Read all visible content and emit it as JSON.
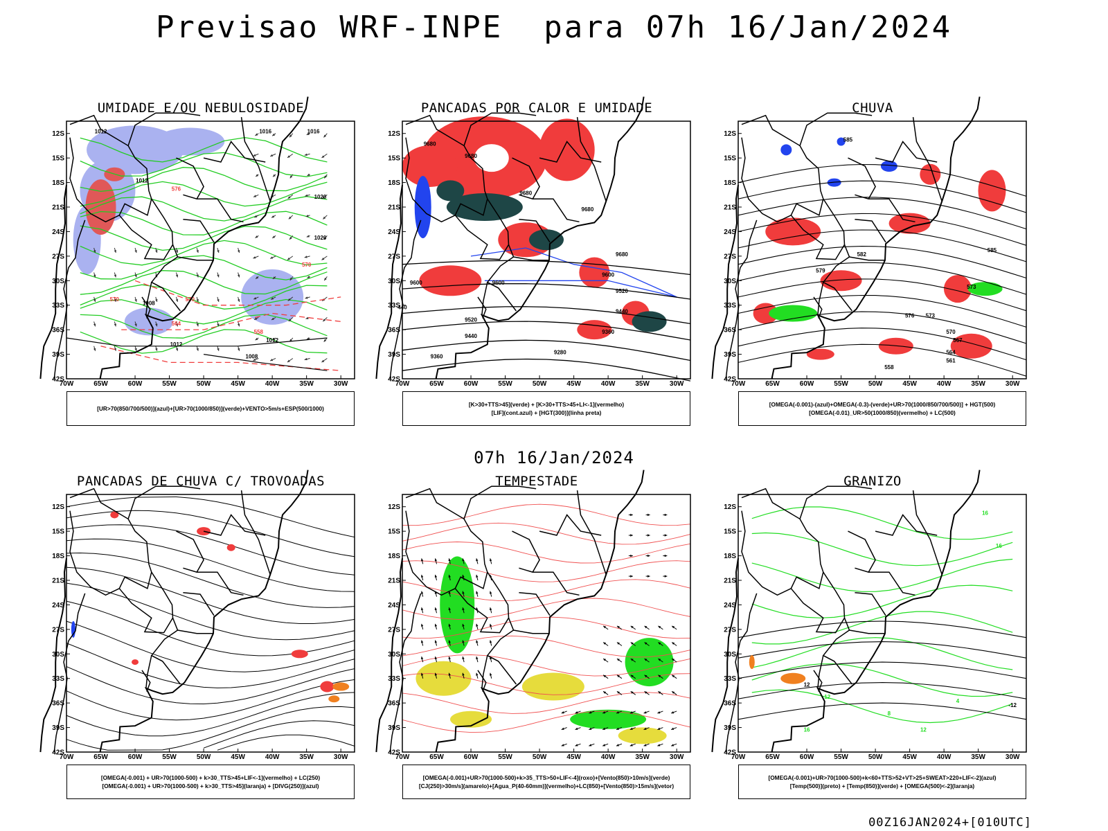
{
  "main_title": "Previsao WRF-INPE  para 07h 16/Jan/2024",
  "mid_title": "07h 16/Jan/2024",
  "footer": "00Z16JAN2024+[010UTC]",
  "lat_labels": [
    "12S",
    "15S",
    "18S",
    "21S",
    "24S",
    "27S",
    "30S",
    "33S",
    "36S",
    "39S",
    "42S"
  ],
  "lon_labels": [
    "70W",
    "65W",
    "60W",
    "55W",
    "50W",
    "45W",
    "40W",
    "35W",
    "30W"
  ],
  "colors": {
    "humidity_blue": "#aab2f0",
    "humidity_green": "#22cc22",
    "red": "#f03c3c",
    "dark_teal": "#1e4646",
    "blue": "#2244ee",
    "green": "#22dd22",
    "orange": "#f08020",
    "yellow": "#e6dc3c",
    "pink_line": "#f05050"
  },
  "panels": [
    {
      "title": "UMIDADE E/OU NEBULOSIDADE",
      "legend": [
        "[UR>70(850/700/500)](azul)+[UR>70(1000/850)](verde)+VENTO>5m/s+ESP(500/1000)"
      ],
      "contour_labels": [
        "1012",
        "1016",
        "1020",
        "1008",
        "570",
        "576",
        "564",
        "558"
      ]
    },
    {
      "title": "PANCADAS POR CALOR E UMIDADE",
      "legend": [
        "[K>30+TTS>45](verde) + [K>30+TTS>45+LI<-1](vermelho)",
        "[LIF](cont.azul) + [HGT(300)](linha preta)"
      ],
      "contour_labels": [
        "9680",
        "9600",
        "9520",
        "9440",
        "9360",
        "9280"
      ]
    },
    {
      "title": "CHUVA",
      "legend": [
        "[OMEGA(-0.001)-(azul)+OMEGA(-0.3)-(verde)+UR>70(1000/850/700/500)] + HGT(500)",
        "[OMEGA(-0.01)_UR>50(1000/850)(vermelho) + LC(500)"
      ],
      "contour_labels": [
        "585",
        "582",
        "579",
        "576",
        "573",
        "570",
        "567",
        "564",
        "561",
        "558"
      ]
    },
    {
      "title": "PANCADAS DE CHUVA C/ TROVOADAS",
      "legend": [
        "[OMEGA(-0.001) + UR>70(1000-500) + k>30_TTS>45+LIF<-1](vermelho) + LC(250)",
        "[OMEGA(-0.001) + UR>70(1000-500) + k>30_TTS>45](laranja) + [DIVG(250)](azul)"
      ],
      "contour_labels": []
    },
    {
      "title": "TEMPESTADE",
      "legend": [
        "[OMEGA(-0.001)+UR>70(1000-500)+k>35_TTS>50+LIF<-4](roxo)+[Vento(850)>10m/s](verde)",
        "[CJ(250)>30m/s](amarelo)+[Agua_P(40-60mm)](vermelho)+LC(850)+[Vento(850)>15m/s](vetor)"
      ],
      "contour_labels": []
    },
    {
      "title": "GRANIZO",
      "legend": [
        "[OMEGA(-0.001)+UR>70(1000-500)+k<60+TTS>52+VT>25+SWEAT>220+LIF<-2](azul)",
        "[Temp(500)](preto) + [Temp(850)](verde) + [OMEGA(500)<-2](laranja)"
      ],
      "contour_labels": [
        "16",
        "12",
        "8",
        "4",
        "-12"
      ]
    }
  ]
}
